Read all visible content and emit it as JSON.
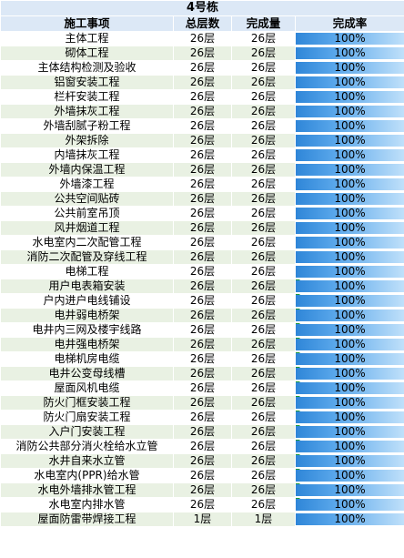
{
  "sheet_title": "4号栋",
  "headers": {
    "name": "施工事项",
    "total": "总层数",
    "done": "完成量",
    "rate": "完成率"
  },
  "colors": {
    "bar": "#3f95e0",
    "header_bg": "#dce8f6",
    "alt_row_bg": "#e9f1e3",
    "flag": "#1f9a3a"
  },
  "rows": [
    {
      "name": "主体工程",
      "total": "26层",
      "done": "26层",
      "rate": "100%",
      "progress": 1.0
    },
    {
      "name": "砌体工程",
      "total": "26层",
      "done": "26层",
      "rate": "100%",
      "progress": 1.0
    },
    {
      "name": "主体结构检测及验收",
      "total": "26层",
      "done": "26层",
      "rate": "100%",
      "progress": 1.0
    },
    {
      "name": "铝窗安装工程",
      "total": "26层",
      "done": "26层",
      "rate": "100%",
      "progress": 1.0
    },
    {
      "name": "栏杆安装工程",
      "total": "26层",
      "done": "26层",
      "rate": "100%",
      "progress": 1.0
    },
    {
      "name": "外墙抹灰工程",
      "total": "26层",
      "done": "26层",
      "rate": "100%",
      "progress": 1.0
    },
    {
      "name": "外墙刮腻子粉工程",
      "total": "26层",
      "done": "26层",
      "rate": "100%",
      "progress": 1.0
    },
    {
      "name": "外架拆除",
      "total": "26层",
      "done": "26层",
      "rate": "100%",
      "progress": 1.0
    },
    {
      "name": "内墙抹灰工程",
      "total": "26层",
      "done": "26层",
      "rate": "100%",
      "progress": 1.0
    },
    {
      "name": "外墙内保温工程",
      "total": "26层",
      "done": "26层",
      "rate": "100%",
      "progress": 1.0
    },
    {
      "name": "外墙漆工程",
      "total": "26层",
      "done": "26层",
      "rate": "100%",
      "progress": 1.0
    },
    {
      "name": "公共空间贴砖",
      "total": "26层",
      "done": "26层",
      "rate": "100%",
      "progress": 1.0
    },
    {
      "name": "公共前室吊顶",
      "total": "26层",
      "done": "26层",
      "rate": "100%",
      "progress": 1.0
    },
    {
      "name": "风井烟道工程",
      "total": "26层",
      "done": "26层",
      "rate": "100%",
      "progress": 1.0
    },
    {
      "name": "水电室内二次配管工程",
      "total": "26层",
      "done": "26层",
      "rate": "100%",
      "progress": 1.0
    },
    {
      "name": "消防二次配管及穿线工程",
      "total": "26层",
      "done": "26层",
      "rate": "100%",
      "progress": 1.0
    },
    {
      "name": "电梯工程",
      "total": "26层",
      "done": "26层",
      "rate": "100%",
      "progress": 1.0
    },
    {
      "name": "用户电表箱安装",
      "total": "26层",
      "done": "26层",
      "rate": "100%",
      "progress": 1.0,
      "flag": true
    },
    {
      "name": "户内进户电线铺设",
      "total": "26层",
      "done": "26层",
      "rate": "100%",
      "progress": 1.0,
      "flag": true
    },
    {
      "name": "电井弱电桥架",
      "total": "26层",
      "done": "26层",
      "rate": "100%",
      "progress": 1.0,
      "flag": true
    },
    {
      "name": "电井内三网及楼宇线路",
      "total": "26层",
      "done": "26层",
      "rate": "100%",
      "progress": 1.0,
      "flag": true
    },
    {
      "name": "电井强电桥架",
      "total": "26层",
      "done": "26层",
      "rate": "100%",
      "progress": 1.0,
      "flag": true
    },
    {
      "name": "电梯机房电缆",
      "total": "26层",
      "done": "26层",
      "rate": "100%",
      "progress": 1.0,
      "flag": true
    },
    {
      "name": "电井公变母线槽",
      "total": "26层",
      "done": "26层",
      "rate": "100%",
      "progress": 1.0,
      "flag": true
    },
    {
      "name": "屋面风机电缆",
      "total": "26层",
      "done": "26层",
      "rate": "100%",
      "progress": 1.0,
      "flag": true
    },
    {
      "name": "防火门框安装工程",
      "total": "26层",
      "done": "26层",
      "rate": "100%",
      "progress": 1.0,
      "flag": true
    },
    {
      "name": "防火门扇安装工程",
      "total": "26层",
      "done": "26层",
      "rate": "100%",
      "progress": 1.0,
      "flag": true
    },
    {
      "name": "入户门安装工程",
      "total": "26层",
      "done": "26层",
      "rate": "100%",
      "progress": 1.0,
      "flag": true
    },
    {
      "name": "消防公共部分消火栓给水立管",
      "total": "26层",
      "done": "26层",
      "rate": "100%",
      "progress": 1.0,
      "flag": true
    },
    {
      "name": "水井自来水立管",
      "total": "26层",
      "done": "26层",
      "rate": "100%",
      "progress": 1.0,
      "flag": true
    },
    {
      "name": "水电室内(PPR)给水管",
      "total": "26层",
      "done": "26层",
      "rate": "100%",
      "progress": 1.0,
      "flag": true
    },
    {
      "name": "水电外墙排水管工程",
      "total": "26层",
      "done": "26层",
      "rate": "100%",
      "progress": 1.0,
      "flag": true
    },
    {
      "name": "水电室内排水管",
      "total": "26层",
      "done": "26层",
      "rate": "100%",
      "progress": 1.0,
      "flag": true
    },
    {
      "name": "屋面防雷带焊接工程",
      "total": "1层",
      "done": "1层",
      "rate": "100%",
      "progress": 1.0
    }
  ]
}
